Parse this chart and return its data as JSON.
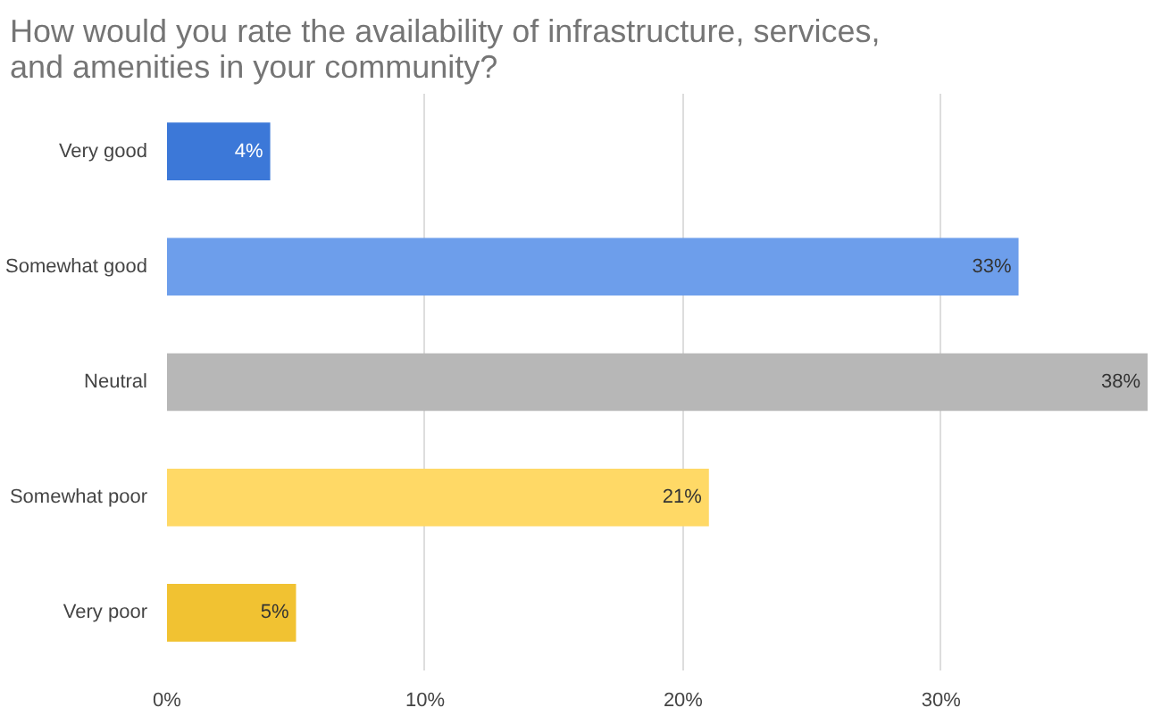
{
  "chart_data": {
    "type": "bar",
    "orientation": "horizontal",
    "title": "How would you rate the availability of infrastructure, services,\nand amenities in your community?",
    "categories": [
      "Very good",
      "Somewhat good",
      "Neutral",
      "Somewhat poor",
      "Very poor"
    ],
    "values": [
      4,
      33,
      38,
      21,
      5
    ],
    "colors": [
      "#3c78d8",
      "#6d9eeb",
      "#b7b7b7",
      "#ffd966",
      "#f1c232"
    ],
    "value_labels": [
      "4%",
      "33%",
      "38%",
      "21%",
      "5%"
    ],
    "xlim": [
      0,
      38
    ],
    "xticks": [
      {
        "value": 0,
        "label": "0%"
      },
      {
        "value": 10,
        "label": "10%"
      },
      {
        "value": 20,
        "label": "20%"
      },
      {
        "value": 30,
        "label": "30%"
      }
    ],
    "grid": "x"
  }
}
